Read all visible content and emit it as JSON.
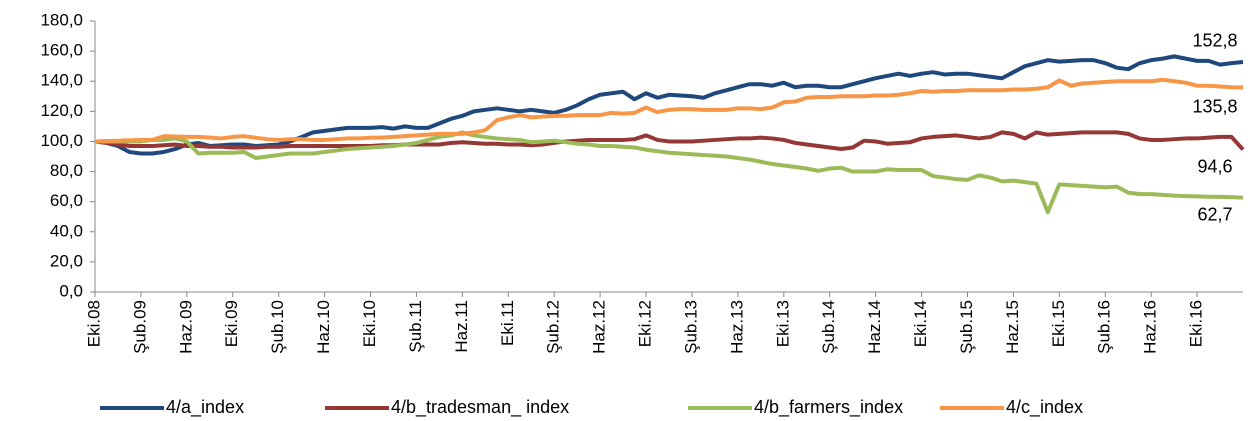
{
  "chart_data": {
    "type": "line",
    "categories": [
      "Eki.08",
      null,
      null,
      null,
      "Şub.09",
      null,
      null,
      null,
      "Haz.09",
      null,
      null,
      null,
      "Eki.09",
      null,
      null,
      null,
      "Şub.10",
      null,
      null,
      null,
      "Haz.10",
      null,
      null,
      null,
      "Eki.10",
      null,
      null,
      null,
      "Şub.11",
      null,
      null,
      null,
      "Haz.11",
      null,
      null,
      null,
      "Eki.11",
      null,
      null,
      null,
      "Şub.12",
      null,
      null,
      null,
      "Haz.12",
      null,
      null,
      null,
      "Eki.12",
      null,
      null,
      null,
      "Şub.13",
      null,
      null,
      null,
      "Haz.13",
      null,
      null,
      null,
      "Eki.13",
      null,
      null,
      null,
      "Şub.14",
      null,
      null,
      null,
      "Haz.14",
      null,
      null,
      null,
      "Eki.14",
      null,
      null,
      null,
      "Şub.15",
      null,
      null,
      null,
      "Haz.15",
      null,
      null,
      null,
      "Eki.15",
      null,
      null,
      null,
      "Şub.16",
      null,
      null,
      null,
      "Haz.16",
      null,
      null,
      null,
      "Eki.16",
      null,
      null,
      null,
      null
    ],
    "ylim": [
      0,
      180
    ],
    "yticks": [
      {
        "value": 0,
        "label": "0,0"
      },
      {
        "value": 20,
        "label": "20,0"
      },
      {
        "value": 40,
        "label": "40,0"
      },
      {
        "value": 60,
        "label": "60,0"
      },
      {
        "value": 80,
        "label": "80,0"
      },
      {
        "value": 100,
        "label": "100,0"
      },
      {
        "value": 120,
        "label": "120,0"
      },
      {
        "value": 140,
        "label": "140,0"
      },
      {
        "value": 160,
        "label": "160,0"
      },
      {
        "value": 180,
        "label": "180,0"
      }
    ],
    "legend": "bottom",
    "series": [
      {
        "name": "4/a_index",
        "color": "#1F497D",
        "values": [
          100,
          99,
          97,
          93,
          92,
          92,
          93,
          95,
          98,
          99,
          97,
          97.5,
          98,
          98,
          97,
          97.5,
          98,
          100,
          103,
          106,
          107,
          108,
          109,
          109,
          109,
          109.5,
          108.5,
          110,
          109,
          109,
          112,
          115,
          117,
          120,
          121,
          122,
          121,
          120,
          121,
          120,
          119,
          121,
          124,
          128,
          131,
          132,
          133,
          128,
          132,
          129,
          131,
          130.5,
          130,
          129,
          132,
          134,
          136,
          138,
          138,
          137,
          139,
          136,
          137,
          137,
          136,
          136,
          138,
          140,
          142,
          143.5,
          145,
          143.5,
          145,
          146,
          144.5,
          145,
          145,
          144,
          143,
          142,
          146,
          150,
          152,
          154,
          153,
          153.5,
          154,
          154,
          152,
          149,
          148,
          152,
          154,
          155,
          156.5,
          155,
          153.5,
          153.5,
          151,
          152,
          152.8
        ],
        "value_labels": [
          null,
          null,
          null,
          null,
          null,
          null,
          null,
          null,
          null,
          null,
          null,
          null,
          null,
          null,
          null,
          null,
          null,
          null,
          null,
          null,
          null,
          null,
          null,
          null,
          null,
          null,
          null,
          null,
          null,
          null,
          null,
          null,
          null,
          null,
          null,
          null,
          null,
          null,
          null,
          null,
          null,
          null,
          null,
          null,
          null,
          null,
          null,
          null,
          null,
          null,
          null,
          null,
          null,
          null,
          null,
          null,
          null,
          null,
          null,
          null,
          null,
          null,
          null,
          null,
          null,
          null,
          null,
          null,
          null,
          null,
          null,
          null,
          null,
          null,
          null,
          null,
          null,
          null,
          null,
          null,
          null,
          null,
          null,
          null,
          null,
          null,
          null,
          null,
          null,
          null,
          null,
          null,
          null,
          null,
          null,
          null,
          null,
          null,
          null,
          null,
          "152,8"
        ]
      },
      {
        "name": "4/b_tradesman_ index",
        "color": "#953735",
        "values": [
          100,
          99,
          98,
          97,
          97,
          97,
          97.5,
          98,
          97,
          97,
          96.5,
          96.5,
          96,
          96,
          96,
          96.5,
          96.5,
          97,
          97,
          97,
          97,
          97,
          97,
          97,
          97,
          97.5,
          97.5,
          98,
          98,
          98,
          98,
          99,
          99.5,
          99,
          98.5,
          98.5,
          98,
          98,
          97.5,
          98,
          99,
          100,
          100.5,
          101,
          101,
          101,
          101,
          101.5,
          104,
          101,
          100,
          100,
          100,
          100.5,
          101,
          101.5,
          102,
          102,
          102.5,
          102,
          101,
          99,
          98,
          97,
          96,
          95,
          96,
          100.5,
          100,
          98.5,
          99,
          99.5,
          102,
          103,
          103.5,
          104,
          103,
          102,
          103,
          106,
          105,
          102,
          106,
          104.5,
          105,
          105.5,
          106,
          106,
          106,
          106,
          105,
          102,
          101,
          101,
          101.5,
          102,
          102,
          102.5,
          103,
          103,
          94.6
        ],
        "value_labels": [
          null,
          null,
          null,
          null,
          null,
          null,
          null,
          null,
          null,
          null,
          null,
          null,
          null,
          null,
          null,
          null,
          null,
          null,
          null,
          null,
          null,
          null,
          null,
          null,
          null,
          null,
          null,
          null,
          null,
          null,
          null,
          null,
          null,
          null,
          null,
          null,
          null,
          null,
          null,
          null,
          null,
          null,
          null,
          null,
          null,
          null,
          null,
          null,
          null,
          null,
          null,
          null,
          null,
          null,
          null,
          null,
          null,
          null,
          null,
          null,
          null,
          null,
          null,
          null,
          null,
          null,
          null,
          null,
          null,
          null,
          null,
          null,
          null,
          null,
          null,
          null,
          null,
          null,
          null,
          null,
          null,
          null,
          null,
          null,
          null,
          null,
          null,
          null,
          null,
          null,
          null,
          null,
          null,
          null,
          null,
          null,
          null,
          null,
          null,
          null,
          "94,6"
        ]
      },
      {
        "name": "4/b_farmers_index",
        "color": "#9BBB59",
        "values": [
          100,
          100,
          100,
          100,
          100,
          101,
          101,
          102,
          100,
          92,
          92.5,
          92.5,
          92.5,
          93,
          89,
          90,
          91,
          92,
          92,
          92,
          93,
          94,
          95,
          95.5,
          96,
          96.5,
          97,
          98,
          99,
          101,
          103,
          104,
          106,
          104,
          103,
          102,
          101.5,
          101,
          99.5,
          100,
          100.5,
          99.5,
          98.5,
          98,
          97,
          97,
          96.5,
          96,
          94.5,
          93.5,
          92.5,
          92,
          91.5,
          91,
          90.5,
          90,
          89,
          88,
          86.5,
          85,
          84,
          83,
          82,
          80.5,
          82,
          82.5,
          80,
          80,
          80,
          81.5,
          81,
          81,
          81,
          77,
          76,
          75,
          74.5,
          77.5,
          76,
          73.5,
          74,
          73,
          72,
          53,
          71.5,
          71,
          70.5,
          70,
          69.5,
          70,
          66,
          65,
          65,
          64.5,
          64,
          63.7,
          63.5,
          63.3,
          63.2,
          63,
          62.7
        ],
        "value_labels": [
          null,
          null,
          null,
          null,
          null,
          null,
          null,
          null,
          null,
          null,
          null,
          null,
          null,
          null,
          null,
          null,
          null,
          null,
          null,
          null,
          null,
          null,
          null,
          null,
          null,
          null,
          null,
          null,
          null,
          null,
          null,
          null,
          null,
          null,
          null,
          null,
          null,
          null,
          null,
          null,
          null,
          null,
          null,
          null,
          null,
          null,
          null,
          null,
          null,
          null,
          null,
          null,
          null,
          null,
          null,
          null,
          null,
          null,
          null,
          null,
          null,
          null,
          null,
          null,
          null,
          null,
          null,
          null,
          null,
          null,
          null,
          null,
          null,
          null,
          null,
          null,
          null,
          null,
          null,
          null,
          null,
          null,
          null,
          null,
          null,
          null,
          null,
          null,
          null,
          null,
          null,
          null,
          null,
          null,
          null,
          null,
          null,
          null,
          null,
          null,
          "62,7"
        ]
      },
      {
        "name": "4/c_index",
        "color": "#F79646",
        "values": [
          100,
          100.3,
          100.5,
          100.8,
          101,
          101,
          103.5,
          103.3,
          103,
          103,
          102.5,
          102,
          103,
          103.5,
          102.5,
          101.5,
          101,
          101.5,
          101.5,
          101,
          101,
          101.5,
          102,
          102,
          102.5,
          102.5,
          103,
          103.5,
          104,
          104.5,
          105,
          105,
          105,
          106,
          107.5,
          114,
          116,
          117.5,
          116,
          116.5,
          117,
          117,
          117.5,
          117.5,
          117.5,
          119,
          118.5,
          119,
          122.5,
          119.5,
          121,
          121.5,
          121.5,
          121,
          121,
          121,
          122,
          122,
          121.5,
          122.5,
          126,
          126.5,
          129,
          129.5,
          129.5,
          130,
          130,
          130,
          130.5,
          130.5,
          131,
          132,
          133.5,
          133,
          133.5,
          133.5,
          134,
          134,
          134,
          134,
          134.5,
          134.5,
          135,
          136,
          140.5,
          137,
          138.5,
          139,
          139.5,
          140,
          140,
          140,
          140,
          141,
          140,
          139,
          137,
          137,
          136.5,
          136,
          135.8
        ],
        "value_labels": [
          null,
          null,
          null,
          null,
          null,
          null,
          null,
          null,
          null,
          null,
          null,
          null,
          null,
          null,
          null,
          null,
          null,
          null,
          null,
          null,
          null,
          null,
          null,
          null,
          null,
          null,
          null,
          null,
          null,
          null,
          null,
          null,
          null,
          null,
          null,
          null,
          null,
          null,
          null,
          null,
          null,
          null,
          null,
          null,
          null,
          null,
          null,
          null,
          null,
          null,
          null,
          null,
          null,
          null,
          null,
          null,
          null,
          null,
          null,
          null,
          null,
          null,
          null,
          null,
          null,
          null,
          null,
          null,
          null,
          null,
          null,
          null,
          null,
          null,
          null,
          null,
          null,
          null,
          null,
          null,
          null,
          null,
          null,
          null,
          null,
          null,
          null,
          null,
          null,
          null,
          null,
          null,
          null,
          null,
          null,
          null,
          null,
          null,
          null,
          null,
          "135,8"
        ]
      }
    ]
  }
}
